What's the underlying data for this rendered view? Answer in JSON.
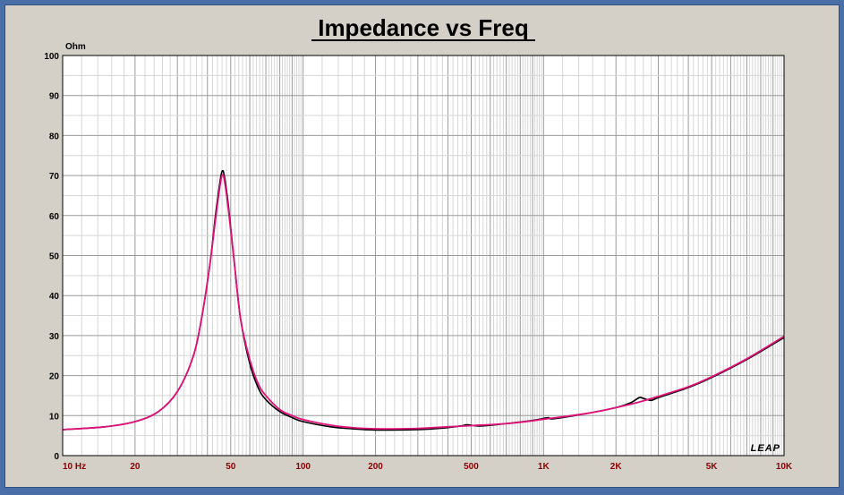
{
  "chart_data": {
    "type": "line",
    "title": "Impedance vs Freq",
    "ylabel": "Ohm",
    "xscale": "log",
    "xlim": [
      10,
      10000
    ],
    "ylim": [
      0,
      100
    ],
    "grid": true,
    "logo": "LEAP",
    "y_ticks": [
      "0",
      "10",
      "20",
      "30",
      "40",
      "50",
      "60",
      "70",
      "80",
      "90",
      "100"
    ],
    "x_ticks": [
      {
        "value": 10,
        "label": "10 Hz"
      },
      {
        "value": 20,
        "label": "20"
      },
      {
        "value": 50,
        "label": "50"
      },
      {
        "value": 100,
        "label": "100"
      },
      {
        "value": 200,
        "label": "200"
      },
      {
        "value": 500,
        "label": "500"
      },
      {
        "value": 1000,
        "label": "1K"
      },
      {
        "value": 2000,
        "label": "2K"
      },
      {
        "value": 5000,
        "label": "5K"
      },
      {
        "value": 10000,
        "label": "10K"
      }
    ],
    "series": [
      {
        "color": "#000000",
        "points": [
          [
            10,
            6.5
          ],
          [
            15,
            7.2
          ],
          [
            20,
            8.5
          ],
          [
            25,
            11
          ],
          [
            30,
            16
          ],
          [
            35,
            25
          ],
          [
            38,
            35
          ],
          [
            41,
            48
          ],
          [
            43,
            59
          ],
          [
            45,
            68
          ],
          [
            46,
            71
          ],
          [
            47,
            70
          ],
          [
            49,
            62
          ],
          [
            52,
            47
          ],
          [
            55,
            34
          ],
          [
            60,
            23
          ],
          [
            65,
            17
          ],
          [
            70,
            14
          ],
          [
            80,
            11
          ],
          [
            90,
            9.5
          ],
          [
            100,
            8.5
          ],
          [
            130,
            7.2
          ],
          [
            160,
            6.7
          ],
          [
            200,
            6.4
          ],
          [
            300,
            6.5
          ],
          [
            400,
            7
          ],
          [
            450,
            7.4
          ],
          [
            480,
            7.7
          ],
          [
            500,
            7.6
          ],
          [
            550,
            7.4
          ],
          [
            700,
            8
          ],
          [
            900,
            8.8
          ],
          [
            1000,
            9.3
          ],
          [
            1050,
            9.5
          ],
          [
            1100,
            9.2
          ],
          [
            1500,
            10.5
          ],
          [
            2000,
            12
          ],
          [
            2300,
            13.2
          ],
          [
            2500,
            14.5
          ],
          [
            2600,
            14.3
          ],
          [
            2800,
            13.8
          ],
          [
            3000,
            14.5
          ],
          [
            4000,
            17
          ],
          [
            5000,
            19.5
          ],
          [
            7000,
            24
          ],
          [
            10000,
            29.5
          ]
        ]
      },
      {
        "color": "#e0127a",
        "points": [
          [
            10,
            6.5
          ],
          [
            15,
            7.2
          ],
          [
            20,
            8.5
          ],
          [
            25,
            11
          ],
          [
            30,
            16
          ],
          [
            35,
            25
          ],
          [
            38,
            35
          ],
          [
            41,
            48
          ],
          [
            43,
            58
          ],
          [
            45,
            67
          ],
          [
            46,
            70
          ],
          [
            47,
            69
          ],
          [
            49,
            61
          ],
          [
            52,
            47
          ],
          [
            55,
            34
          ],
          [
            60,
            24
          ],
          [
            65,
            18
          ],
          [
            70,
            15
          ],
          [
            80,
            11.5
          ],
          [
            90,
            10
          ],
          [
            100,
            9
          ],
          [
            130,
            7.6
          ],
          [
            160,
            7
          ],
          [
            200,
            6.7
          ],
          [
            300,
            6.8
          ],
          [
            400,
            7.2
          ],
          [
            500,
            7.5
          ],
          [
            700,
            8
          ],
          [
            900,
            8.7
          ],
          [
            1000,
            9.1
          ],
          [
            1500,
            10.5
          ],
          [
            2000,
            12
          ],
          [
            2500,
            13.4
          ],
          [
            3000,
            14.8
          ],
          [
            4000,
            17.2
          ],
          [
            5000,
            19.7
          ],
          [
            7000,
            24.2
          ],
          [
            10000,
            29.8
          ]
        ]
      }
    ]
  }
}
